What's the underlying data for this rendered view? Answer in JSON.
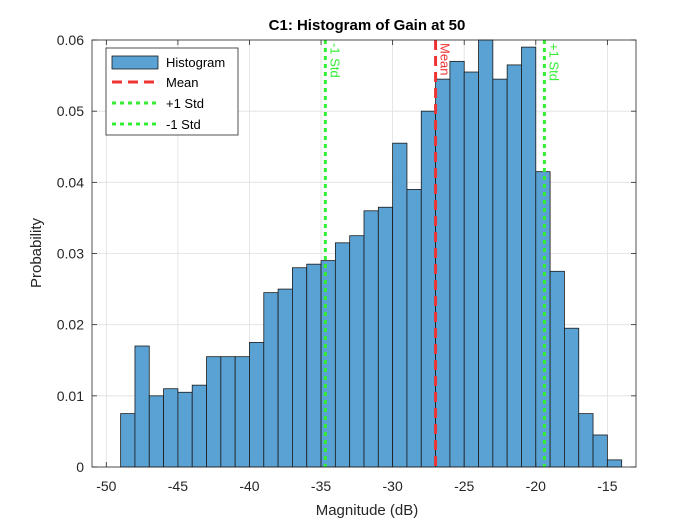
{
  "chart_data": {
    "type": "bar",
    "title": "C1: Histogram of Gain at 50",
    "xlabel": "Magnitude (dB)",
    "ylabel": "Probability",
    "xlim": [
      -51,
      -13
    ],
    "ylim": [
      0,
      0.06
    ],
    "xticks": [
      -50,
      -45,
      -40,
      -35,
      -30,
      -25,
      -20,
      -15
    ],
    "yticks": [
      0,
      0.01,
      0.02,
      0.03,
      0.04,
      0.05,
      0.06
    ],
    "xtick_labels": [
      "-50",
      "-45",
      "-40",
      "-35",
      "-30",
      "-25",
      "-20",
      "-15"
    ],
    "ytick_labels": [
      "0",
      "0.01",
      "0.02",
      "0.03",
      "0.04",
      "0.05",
      "0.06"
    ],
    "grid": true,
    "bin_edges": [
      -49,
      -48,
      -47,
      -46,
      -45,
      -44,
      -43,
      -42,
      -41,
      -40,
      -39,
      -38,
      -37,
      -36,
      -35,
      -34,
      -33,
      -32,
      -31,
      -30,
      -29,
      -28,
      -27,
      -26,
      -25,
      -24,
      -23,
      -22,
      -21,
      -20,
      -19,
      -18,
      -17,
      -16,
      -15,
      -14
    ],
    "values": [
      0.0075,
      0.017,
      0.01,
      0.011,
      0.0105,
      0.0115,
      0.0155,
      0.0155,
      0.0155,
      0.0175,
      0.0245,
      0.025,
      0.028,
      0.0285,
      0.029,
      0.0315,
      0.0325,
      0.036,
      0.0365,
      0.0455,
      0.039,
      0.05,
      0.0545,
      0.057,
      0.0555,
      0.06,
      0.0545,
      0.0565,
      0.059,
      0.0415,
      0.0275,
      0.0195,
      0.0075,
      0.0045,
      0.001
    ],
    "bar_color": "#5aa2d4",
    "bar_edge_color": "#1a1a1a",
    "lines": [
      {
        "name": "Mean",
        "x": -27,
        "color": "#ee3333",
        "label": "Mean"
      },
      {
        "name": "+1 Std",
        "x": -19.4,
        "color": "#33ee33",
        "label": "+1 Std"
      },
      {
        "name": "-1 Std",
        "x": -34.7,
        "color": "#33ee33",
        "label": "-1 Std"
      }
    ],
    "legend": {
      "location": "top-left",
      "entries": [
        "Histogram",
        "Mean",
        "+1 Std",
        "-1 Std"
      ]
    }
  }
}
